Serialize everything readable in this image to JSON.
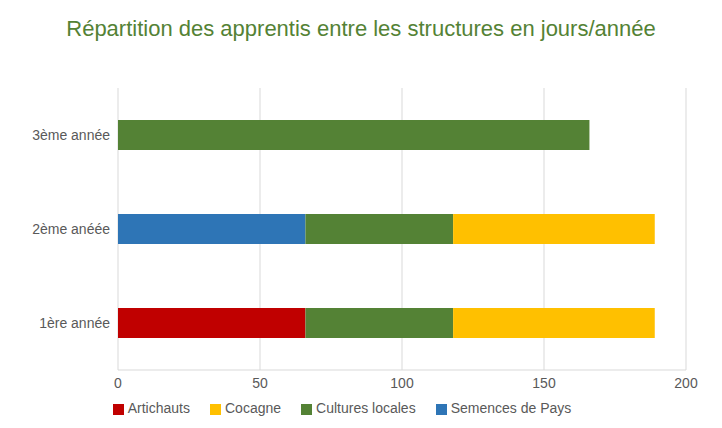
{
  "chart_data": {
    "type": "bar",
    "title": "Répartition des apprentis entre les structures en jours/année",
    "orientation": "horizontal",
    "stacked": true,
    "categories": [
      "1ère année",
      "2ème anéée",
      "3ème année"
    ],
    "series": [
      {
        "name": "Artichauts",
        "color": "#c00000",
        "values": [
          66,
          null,
          null
        ]
      },
      {
        "name": "Semences de Pays",
        "color": "#2e75b6",
        "values": [
          null,
          66,
          null
        ]
      },
      {
        "name": "Cultures locales",
        "color": "#548235",
        "values": [
          52,
          52,
          166
        ]
      },
      {
        "name": "Cocagne",
        "color": "#ffc000",
        "values": [
          71,
          71,
          null
        ]
      }
    ],
    "xlim": [
      0,
      200
    ],
    "xticks": [
      0,
      50,
      100,
      150,
      200
    ],
    "grid": true,
    "legend": "bottom"
  }
}
